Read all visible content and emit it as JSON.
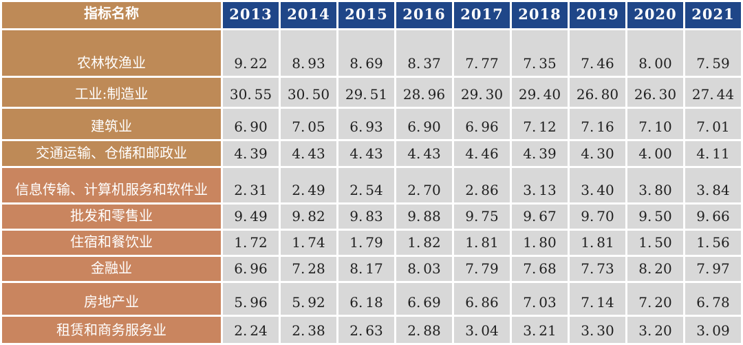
{
  "table": {
    "header": {
      "indicator_label": "指标名称"
    }
  },
  "colors": {
    "header_bg": "#1F4688",
    "label_bg_tan": "#BE8A57",
    "label_bg_salmon": "#C9855F",
    "cell_bg": "#D8D8D8",
    "grid": "#FFFFFF",
    "value_text": "#1F1F1F",
    "label_text": "#FFFFFF"
  },
  "chart_data": {
    "type": "table",
    "title": "",
    "categories": [
      "2013",
      "2014",
      "2015",
      "2016",
      "2017",
      "2018",
      "2019",
      "2020",
      "2021"
    ],
    "series": [
      {
        "name": "农林牧渔业",
        "values": [
          9.22,
          8.93,
          8.69,
          8.37,
          7.77,
          7.35,
          7.46,
          8.0,
          7.59
        ]
      },
      {
        "name": "工业:制造业",
        "values": [
          30.55,
          30.5,
          29.51,
          28.96,
          29.3,
          29.4,
          26.8,
          26.3,
          27.44
        ]
      },
      {
        "name": "建筑业",
        "values": [
          6.9,
          7.05,
          6.93,
          6.9,
          6.96,
          7.12,
          7.16,
          7.1,
          7.01
        ]
      },
      {
        "name": "交通运输、仓储和邮政业",
        "values": [
          4.39,
          4.43,
          4.43,
          4.43,
          4.46,
          4.39,
          4.3,
          4.0,
          4.11
        ]
      },
      {
        "name": "信息传输、计算机服务和软件业",
        "values": [
          2.31,
          2.49,
          2.54,
          2.7,
          2.86,
          3.13,
          3.4,
          3.8,
          3.84
        ]
      },
      {
        "name": "批发和零售业",
        "values": [
          9.49,
          9.82,
          9.83,
          9.88,
          9.75,
          9.67,
          9.7,
          9.5,
          9.66
        ]
      },
      {
        "name": "住宿和餐饮业",
        "values": [
          1.72,
          1.74,
          1.79,
          1.82,
          1.81,
          1.8,
          1.81,
          1.5,
          1.56
        ]
      },
      {
        "name": "金融业",
        "values": [
          6.96,
          7.28,
          8.17,
          8.03,
          7.79,
          7.68,
          7.73,
          8.2,
          7.97
        ]
      },
      {
        "name": "房地产业",
        "values": [
          5.96,
          5.92,
          6.18,
          6.69,
          6.86,
          7.03,
          7.14,
          7.2,
          6.78
        ]
      },
      {
        "name": "租赁和商务服务业",
        "values": [
          2.24,
          2.38,
          2.63,
          2.88,
          3.04,
          3.21,
          3.3,
          3.2,
          3.09
        ]
      }
    ],
    "layout": {
      "first_column": "row labels",
      "grid": "white 3px separators",
      "value_format": "2 decimals"
    }
  }
}
